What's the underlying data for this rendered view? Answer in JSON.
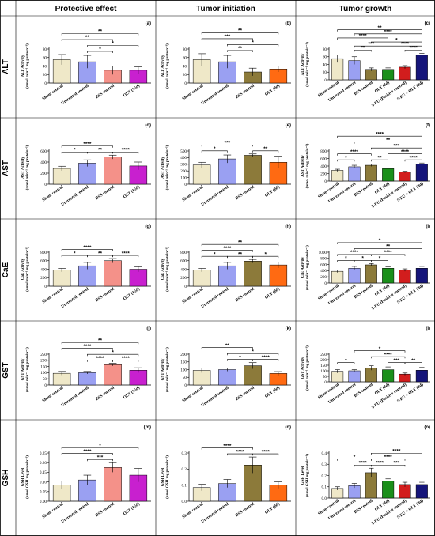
{
  "headers": [
    "Protective effect",
    "Tumor initiation",
    "Tumor growth"
  ],
  "rows": [
    "ALT",
    "AST",
    "CaE",
    "GST",
    "GSH"
  ],
  "colors": {
    "Sham control": "#efe8c8",
    "Untreated control": "#9aa0f2",
    "BSS control": "#f49189",
    "OLT (15d)": "#c820cf",
    "OLT (8d)": "#8c7a3a",
    "OLT (8d) tg": "#1a8f1a",
    "5-FU (Positive control)": "#d21d1d",
    "5-FU + OLT (8d)": "#15157a",
    "tumor_init_olt": "#ff6a12"
  },
  "chart_data": [
    {
      "id": "a",
      "type": "bar",
      "row": "ALT",
      "col": 0,
      "panel_label": "(a)",
      "ylabel": "ALT Activity",
      "ylabel2": "(nmol min⁻¹ mg protein⁻¹)",
      "ylim": [
        0,
        80
      ],
      "yticks": [
        0,
        20,
        40,
        60,
        80
      ],
      "categories": [
        "Sham control",
        "Untreated control",
        "BSS control",
        "OLT (15d)"
      ],
      "values": [
        55,
        50,
        30,
        30
      ],
      "errors": [
        12,
        15,
        10,
        8
      ],
      "bar_colors": [
        "#efe8c8",
        "#9aa0f2",
        "#f49189",
        "#c820cf"
      ],
      "brackets": [
        {
          "from": 0,
          "to": 3,
          "text": "**"
        },
        {
          "from": 1,
          "to": 3,
          "text": "*"
        },
        {
          "from": 0,
          "to": 2,
          "text": "**"
        },
        {
          "from": 1,
          "to": 2,
          "text": "*"
        }
      ]
    },
    {
      "id": "b",
      "type": "bar",
      "row": "ALT",
      "col": 1,
      "panel_label": "(b)",
      "ylabel": "ALT Activity",
      "ylabel2": "(nmol min⁻¹ mg protein⁻¹)",
      "ylim": [
        0,
        80
      ],
      "yticks": [
        0,
        20,
        40,
        60,
        80
      ],
      "categories": [
        "Sham control",
        "Untreated control",
        "BSS control",
        "OLT (8d)"
      ],
      "values": [
        55,
        50,
        26,
        33
      ],
      "errors": [
        14,
        15,
        9,
        7
      ],
      "bar_colors": [
        "#efe8c8",
        "#9aa0f2",
        "#8c7a3a",
        "#ff6a12"
      ],
      "brackets": [
        {
          "from": 0,
          "to": 3,
          "text": "**"
        },
        {
          "from": 1,
          "to": 3,
          "text": "*"
        },
        {
          "from": 0,
          "to": 2,
          "text": "***"
        },
        {
          "from": 1,
          "to": 2,
          "text": "**"
        }
      ]
    },
    {
      "id": "c",
      "type": "bar",
      "row": "ALT",
      "col": 2,
      "panel_label": "(c)",
      "ylabel": "ALT Activity",
      "ylabel2": "(nmol min⁻¹ mg protein⁻¹)",
      "ylim": [
        0,
        80
      ],
      "yticks": [
        0,
        20,
        40,
        60,
        80
      ],
      "categories": [
        "Sham control",
        "Untreated control",
        "BSS control",
        "OLT (8d)",
        "5-FU (Positive control)",
        "5-FU + OLT (8d)"
      ],
      "values": [
        55,
        50,
        27,
        27,
        33,
        64
      ],
      "errors": [
        10,
        10,
        4,
        4,
        4,
        5
      ],
      "bar_colors": [
        "#efe8c8",
        "#9aa0f2",
        "#8c7a3a",
        "#1a8f1a",
        "#d21d1d",
        "#15157a"
      ],
      "brackets": [
        {
          "from": 0,
          "to": 5,
          "text": "**"
        },
        {
          "from": 1,
          "to": 5,
          "text": "****"
        },
        {
          "from": 2,
          "to": 5,
          "text": "*"
        },
        {
          "from": 0,
          "to": 3,
          "text": "****"
        },
        {
          "from": 3,
          "to": 5,
          "text": "****"
        },
        {
          "from": 1,
          "to": 3,
          "text": "***"
        },
        {
          "from": 4,
          "to": 5,
          "text": "****"
        },
        {
          "from": 1,
          "to": 2,
          "text": "**"
        }
      ]
    },
    {
      "id": "d",
      "type": "bar",
      "row": "AST",
      "col": 0,
      "panel_label": "(d)",
      "ylabel": "AST Activity",
      "ylabel2": "(nmol min⁻¹ mg protein⁻¹)",
      "ylim": [
        0,
        600
      ],
      "yticks": [
        0,
        200,
        400,
        600
      ],
      "categories": [
        "Sham control",
        "Untreated control",
        "BSS control",
        "OLT (15d)"
      ],
      "values": [
        285,
        380,
        490,
        330
      ],
      "errors": [
        40,
        60,
        35,
        70
      ],
      "bar_colors": [
        "#efe8c8",
        "#9aa0f2",
        "#f49189",
        "#c820cf"
      ],
      "brackets": [
        {
          "from": 0,
          "to": 2,
          "text": "****"
        },
        {
          "from": 0,
          "to": 1,
          "text": "*"
        },
        {
          "from": 1,
          "to": 2,
          "text": "**"
        },
        {
          "from": 2,
          "to": 3,
          "text": "****"
        }
      ]
    },
    {
      "id": "e",
      "type": "bar",
      "row": "AST",
      "col": 1,
      "panel_label": "(e)",
      "ylabel": "AST Activity",
      "ylabel2": "(nmol min⁻¹ mg protein⁻¹)",
      "ylim": [
        0,
        500
      ],
      "yticks": [
        0,
        100,
        200,
        300,
        400,
        500
      ],
      "categories": [
        "Sham control",
        "Untreated control",
        "BSS control",
        "OLT (8d)"
      ],
      "values": [
        290,
        380,
        435,
        330
      ],
      "errors": [
        40,
        60,
        20,
        90
      ],
      "bar_colors": [
        "#efe8c8",
        "#9aa0f2",
        "#8c7a3a",
        "#ff6a12"
      ],
      "brackets": [
        {
          "from": 0,
          "to": 2,
          "text": "***"
        },
        {
          "from": 0,
          "to": 1,
          "text": "*"
        },
        {
          "from": 2,
          "to": 3,
          "text": "**"
        }
      ]
    },
    {
      "id": "f",
      "type": "bar",
      "row": "AST",
      "col": 2,
      "panel_label": "(f)",
      "ylabel": "AST Activity",
      "ylabel2": "(nmol min⁻¹ mg protein⁻¹)",
      "ylim": [
        0,
        800
      ],
      "yticks": [
        0,
        200,
        400,
        600,
        800
      ],
      "categories": [
        "Sham control",
        "Untreated control",
        "BSS control",
        "OLT (8d)",
        "5-FU (Positive control)",
        "5-FU + OLT (8d)"
      ],
      "values": [
        285,
        380,
        420,
        330,
        240,
        450
      ],
      "errors": [
        30,
        40,
        30,
        20,
        20,
        30
      ],
      "bar_colors": [
        "#efe8c8",
        "#9aa0f2",
        "#8c7a3a",
        "#1a8f1a",
        "#d21d1d",
        "#15157a"
      ],
      "brackets": [
        {
          "from": 0,
          "to": 5,
          "text": "****"
        },
        {
          "from": 1,
          "to": 5,
          "text": "**"
        },
        {
          "from": 2,
          "to": 5,
          "text": "***"
        },
        {
          "from": 3,
          "to": 5,
          "text": "****"
        },
        {
          "from": 0,
          "to": 2,
          "text": "****"
        },
        {
          "from": 0,
          "to": 1,
          "text": "*"
        },
        {
          "from": 2,
          "to": 3,
          "text": "**"
        },
        {
          "from": 4,
          "to": 5,
          "text": "****"
        }
      ]
    },
    {
      "id": "g",
      "type": "bar",
      "row": "CaE",
      "col": 0,
      "panel_label": "(g)",
      "ylabel": "CaE Activity",
      "ylabel2": "(nmol min⁻¹ mg protein⁻¹)",
      "ylim": [
        0,
        800
      ],
      "yticks": [
        0,
        200,
        400,
        600,
        800
      ],
      "categories": [
        "Sham control",
        "Untreated control",
        "BSS control",
        "OLT (15d)"
      ],
      "values": [
        380,
        480,
        600,
        400
      ],
      "errors": [
        40,
        80,
        50,
        60
      ],
      "bar_colors": [
        "#efe8c8",
        "#9aa0f2",
        "#f49189",
        "#c820cf"
      ],
      "brackets": [
        {
          "from": 0,
          "to": 2,
          "text": "****"
        },
        {
          "from": 0,
          "to": 1,
          "text": "*"
        },
        {
          "from": 1,
          "to": 2,
          "text": "**"
        },
        {
          "from": 2,
          "to": 3,
          "text": "****"
        }
      ]
    },
    {
      "id": "h",
      "type": "bar",
      "row": "CaE",
      "col": 1,
      "panel_label": "(h)",
      "ylabel": "CaE Activity",
      "ylabel2": "(nmol min⁻¹ mg protein⁻¹)",
      "ylim": [
        0,
        800
      ],
      "yticks": [
        0,
        200,
        400,
        600,
        800
      ],
      "categories": [
        "Sham control",
        "Untreated control",
        "BSS control",
        "OLT (8d)"
      ],
      "values": [
        380,
        480,
        590,
        500
      ],
      "errors": [
        40,
        80,
        40,
        70
      ],
      "bar_colors": [
        "#efe8c8",
        "#9aa0f2",
        "#8c7a3a",
        "#ff6a12"
      ],
      "brackets": [
        {
          "from": 0,
          "to": 3,
          "text": "**"
        },
        {
          "from": 0,
          "to": 2,
          "text": "****"
        },
        {
          "from": 0,
          "to": 1,
          "text": "*"
        },
        {
          "from": 1,
          "to": 2,
          "text": "**"
        },
        {
          "from": 2,
          "to": 3,
          "text": "*"
        }
      ]
    },
    {
      "id": "i",
      "type": "bar",
      "row": "CaE",
      "col": 2,
      "panel_label": "(i)",
      "ylabel": "CaE Activity",
      "ylabel2": "(nmol min⁻¹ mg protein⁻¹)",
      "ylim": [
        0,
        1000
      ],
      "yticks": [
        0,
        200,
        400,
        600,
        800,
        1000
      ],
      "categories": [
        "Sham control",
        "Untreated control",
        "BSS control",
        "OLT (8d)",
        "5-FU (Positive control)",
        "5-FU + OLT (8d)"
      ],
      "values": [
        380,
        480,
        590,
        480,
        420,
        480
      ],
      "errors": [
        40,
        60,
        40,
        40,
        40,
        60
      ],
      "bar_colors": [
        "#efe8c8",
        "#9aa0f2",
        "#8c7a3a",
        "#1a8f1a",
        "#d21d1d",
        "#15157a"
      ],
      "brackets": [
        {
          "from": 0,
          "to": 5,
          "text": "*"
        },
        {
          "from": 1,
          "to": 5,
          "text": "**"
        },
        {
          "from": 0,
          "to": 2,
          "text": "****"
        },
        {
          "from": 2,
          "to": 4,
          "text": "****"
        },
        {
          "from": 0,
          "to": 1,
          "text": "*"
        },
        {
          "from": 1,
          "to": 2,
          "text": "*"
        },
        {
          "from": 2,
          "to": 3,
          "text": "*"
        }
      ]
    },
    {
      "id": "j",
      "type": "bar",
      "row": "GST",
      "col": 0,
      "panel_label": "(j)",
      "ylabel": "GST Activity",
      "ylabel2": "(nmol min⁻¹ mg protein⁻¹)",
      "ylim": [
        0,
        250
      ],
      "yticks": [
        0,
        50,
        100,
        150,
        200,
        250
      ],
      "categories": [
        "Sham control",
        "Untreated control",
        "BSS control",
        "OLT (15d)"
      ],
      "values": [
        95,
        100,
        165,
        120
      ],
      "errors": [
        15,
        10,
        10,
        20
      ],
      "bar_colors": [
        "#efe8c8",
        "#9aa0f2",
        "#f49189",
        "#c820cf"
      ],
      "brackets": [
        {
          "from": 0,
          "to": 3,
          "text": "**"
        },
        {
          "from": 1,
          "to": 3,
          "text": "*"
        },
        {
          "from": 0,
          "to": 2,
          "text": "****"
        },
        {
          "from": 1,
          "to": 2,
          "text": "****"
        },
        {
          "from": 2,
          "to": 3,
          "text": "****"
        }
      ]
    },
    {
      "id": "k",
      "type": "bar",
      "row": "GST",
      "col": 1,
      "panel_label": "(k)",
      "ylabel": "GST Activity",
      "ylabel2": "(nmol min⁻¹ mg protein⁻¹)",
      "ylim": [
        0,
        200
      ],
      "yticks": [
        0,
        50,
        100,
        150,
        200
      ],
      "categories": [
        "Sham control",
        "Untreated control",
        "BSS control",
        "OLT (8d)"
      ],
      "values": [
        95,
        100,
        125,
        75
      ],
      "errors": [
        15,
        10,
        20,
        12
      ],
      "bar_colors": [
        "#efe8c8",
        "#9aa0f2",
        "#8c7a3a",
        "#ff6a12"
      ],
      "brackets": [
        {
          "from": 1,
          "to": 3,
          "text": "*"
        },
        {
          "from": 0,
          "to": 2,
          "text": "**"
        },
        {
          "from": 1,
          "to": 2,
          "text": "*"
        },
        {
          "from": 2,
          "to": 3,
          "text": "****"
        }
      ]
    },
    {
      "id": "l",
      "type": "bar",
      "row": "GST",
      "col": 2,
      "panel_label": "(l)",
      "ylabel": "GST Activity",
      "ylabel2": "(nmol min⁻¹ mg protein⁻¹)",
      "ylim": [
        0,
        250
      ],
      "yticks": [
        0,
        50,
        100,
        150,
        200,
        250
      ],
      "categories": [
        "Sham control",
        "Untreated control",
        "BSS control",
        "OLT (8d)",
        "5-FU (Positive control)",
        "5-FU + OLT (8d)"
      ],
      "values": [
        95,
        100,
        125,
        110,
        70,
        105
      ],
      "errors": [
        15,
        10,
        20,
        25,
        10,
        25
      ],
      "bar_colors": [
        "#efe8c8",
        "#9aa0f2",
        "#8c7a3a",
        "#1a8f1a",
        "#d21d1d",
        "#15157a"
      ],
      "brackets": [
        {
          "from": 1,
          "to": 4,
          "text": "*"
        },
        {
          "from": 2,
          "to": 4,
          "text": "****"
        },
        {
          "from": 3,
          "to": 4,
          "text": "***"
        },
        {
          "from": 0,
          "to": 1,
          "text": "*"
        },
        {
          "from": 4,
          "to": 5,
          "text": "**"
        }
      ]
    },
    {
      "id": "m",
      "type": "bar",
      "row": "GSH",
      "col": 0,
      "panel_label": "(m)",
      "ylabel": "GSH Level",
      "ylabel2": "(nmol GSH mg protein⁻¹)",
      "ylim": [
        0,
        0.25
      ],
      "yticks": [
        0,
        0.05,
        0.1,
        0.15,
        0.2,
        0.25
      ],
      "tick_labels": [
        "0.00",
        "0.05",
        "0.10",
        "0.15",
        "0.20",
        "0.25"
      ],
      "categories": [
        "Sham control",
        "Untreated control",
        "BSS control",
        "OLT (15d)"
      ],
      "values": [
        0.085,
        0.11,
        0.175,
        0.135
      ],
      "errors": [
        0.02,
        0.025,
        0.025,
        0.035
      ],
      "bar_colors": [
        "#efe8c8",
        "#9aa0f2",
        "#f49189",
        "#c820cf"
      ],
      "brackets": [
        {
          "from": 0,
          "to": 3,
          "text": "*"
        },
        {
          "from": 0,
          "to": 2,
          "text": "****"
        },
        {
          "from": 1,
          "to": 2,
          "text": "***"
        }
      ]
    },
    {
      "id": "n",
      "type": "bar",
      "row": "GSH",
      "col": 1,
      "panel_label": "(n)",
      "ylabel": "GSH Level",
      "ylabel2": "(nmol GSH mg protein⁻¹)",
      "ylim": [
        0,
        0.3
      ],
      "yticks": [
        0,
        0.1,
        0.2,
        0.3
      ],
      "tick_labels": [
        "0.0",
        "0.1",
        "0.2",
        "0.3"
      ],
      "categories": [
        "Sham control",
        "Untreated control",
        "BSS control",
        "OLT (8d)"
      ],
      "values": [
        0.085,
        0.11,
        0.225,
        0.1
      ],
      "errors": [
        0.02,
        0.025,
        0.05,
        0.02
      ],
      "bar_colors": [
        "#efe8c8",
        "#9aa0f2",
        "#8c7a3a",
        "#ff6a12"
      ],
      "brackets": [
        {
          "from": 0,
          "to": 2,
          "text": "****"
        },
        {
          "from": 1,
          "to": 2,
          "text": "****"
        },
        {
          "from": 2,
          "to": 3,
          "text": "****"
        }
      ]
    },
    {
      "id": "o",
      "type": "bar",
      "row": "GSH",
      "col": 2,
      "panel_label": "(o)",
      "ylabel": "GSH Level",
      "ylabel2": "(nmol GSH mg protein⁻¹)",
      "ylim": [
        0,
        0.4
      ],
      "yticks": [
        0,
        0.1,
        0.2,
        0.3,
        0.4
      ],
      "tick_labels": [
        "0.0",
        "0.1",
        "0.2",
        "0.3",
        "0.4"
      ],
      "categories": [
        "Sham control",
        "Untreated control",
        "BSS control",
        "OLT (8d)",
        "5-FU (Positive control)",
        "5-FU + OLT (8d)"
      ],
      "values": [
        0.085,
        0.11,
        0.225,
        0.15,
        0.12,
        0.12
      ],
      "errors": [
        0.015,
        0.02,
        0.04,
        0.02,
        0.02,
        0.02
      ],
      "bar_colors": [
        "#efe8c8",
        "#9aa0f2",
        "#8c7a3a",
        "#1a8f1a",
        "#d21d1d",
        "#15157a"
      ],
      "brackets": [
        {
          "from": 2,
          "to": 5,
          "text": "****"
        },
        {
          "from": 0,
          "to": 2,
          "text": "*"
        },
        {
          "from": 1,
          "to": 2,
          "text": "****"
        },
        {
          "from": 2,
          "to": 4,
          "text": "****"
        },
        {
          "from": 2,
          "to": 3,
          "text": "****"
        },
        {
          "from": 3,
          "to": 4,
          "text": "***"
        }
      ]
    }
  ]
}
